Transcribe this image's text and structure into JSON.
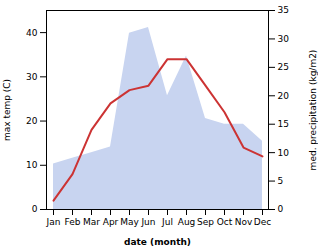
{
  "chart_data": {
    "type": "line",
    "xlabel": "date (month)",
    "ylabel": "max temp (C)",
    "y2label": "med. precipitation (kg/m2)",
    "categories": [
      "Jan",
      "Feb",
      "Mar",
      "Apr",
      "May",
      "Jun",
      "Jul",
      "Aug",
      "Sep",
      "Oct",
      "Nov",
      "Dec"
    ],
    "series": [
      {
        "type": "area",
        "axis": "y2",
        "color": "#c8d4f0",
        "values": [
          8,
          9,
          10,
          11,
          31,
          32,
          20,
          27,
          16,
          15,
          15,
          12
        ]
      },
      {
        "type": "line",
        "color": "#cc3333",
        "values": [
          2,
          8,
          18,
          24,
          27,
          28,
          34,
          34,
          28,
          22,
          14,
          12
        ]
      }
    ],
    "ylim": [
      0,
      45
    ],
    "yticks": [
      0,
      10,
      20,
      30,
      40
    ],
    "y2lim": [
      0,
      35
    ],
    "y2ticks": [
      0,
      5,
      10,
      15,
      20,
      25,
      30,
      35
    ],
    "grid": false
  }
}
